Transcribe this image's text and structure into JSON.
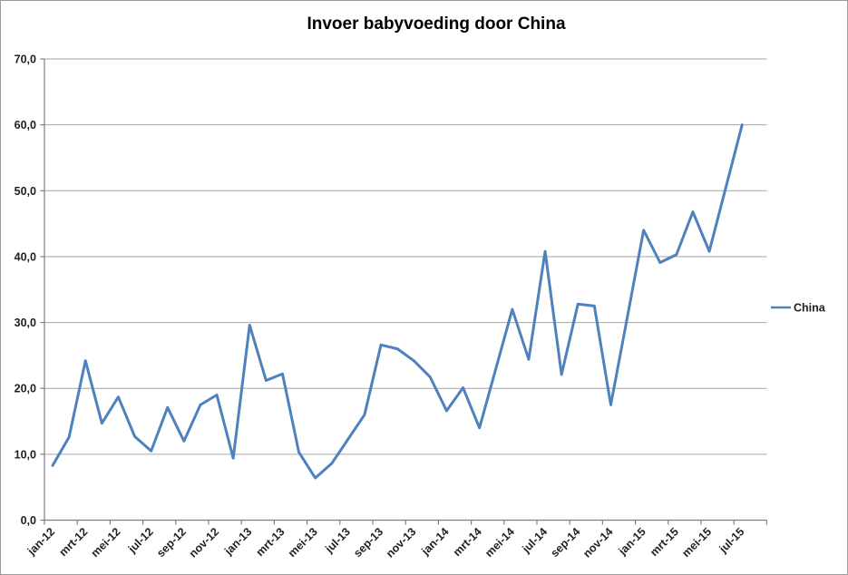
{
  "chart_data": {
    "type": "line",
    "title": "Invoer babyvoeding door China",
    "categories": [
      "jan-12",
      "feb-12",
      "mrt-12",
      "apr-12",
      "mei-12",
      "jun-12",
      "jul-12",
      "aug-12",
      "sep-12",
      "okt-12",
      "nov-12",
      "dec-12",
      "jan-13",
      "feb-13",
      "mrt-13",
      "apr-13",
      "mei-13",
      "jun-13",
      "jul-13",
      "aug-13",
      "sep-13",
      "okt-13",
      "nov-13",
      "dec-13",
      "jan-14",
      "feb-14",
      "mrt-14",
      "apr-14",
      "mei-14",
      "jun-14",
      "jul-14",
      "aug-14",
      "sep-14",
      "okt-14",
      "nov-14",
      "dec-14",
      "jan-15",
      "feb-15",
      "mrt-15",
      "apr-15",
      "mei-15",
      "jun-15",
      "jul-15"
    ],
    "series": [
      {
        "name": "China",
        "color": "#4F81BD",
        "values": [
          8.3,
          12.6,
          24.2,
          14.7,
          18.7,
          12.7,
          10.5,
          17.1,
          12.0,
          17.5,
          19.0,
          9.4,
          29.6,
          21.2,
          22.2,
          10.3,
          6.4,
          8.6,
          12.3,
          16.0,
          26.6,
          26.0,
          24.2,
          21.7,
          16.6,
          20.1,
          14.0,
          23.0,
          32.0,
          24.4,
          40.8,
          22.1,
          32.8,
          32.5,
          17.5,
          30.7,
          44.0,
          39.1,
          40.3,
          46.8,
          40.8,
          50.4,
          60.0
        ]
      }
    ],
    "x_axis": {
      "tick_labels": [
        "jan-12",
        "mrt-12",
        "mei-12",
        "jul-12",
        "sep-12",
        "nov-12",
        "jan-13",
        "mrt-13",
        "mei-13",
        "jul-13",
        "sep-13",
        "nov-13",
        "jan-14",
        "mrt-14",
        "mei-14",
        "jul-14",
        "sep-14",
        "nov-14",
        "jan-15",
        "mrt-15",
        "mei-15",
        "jul-15"
      ],
      "labelled_every_n_categories": 2,
      "label_rotation_deg": -45
    },
    "y_axis": {
      "min": 0,
      "max": 70,
      "step": 10,
      "tick_labels": [
        "0,0",
        "10,0",
        "20,0",
        "30,0",
        "40,0",
        "50,0",
        "60,0",
        "70,0"
      ],
      "decimal_separator": ","
    },
    "grid": true,
    "legend": {
      "position": "right",
      "entries": [
        "China"
      ]
    },
    "colors": {
      "series_line": "#4F81BD",
      "axis": "#808080",
      "gridline": "#A6A6A6",
      "label": "#1f1f1f",
      "title": "#000000",
      "background": "#FFFFFF"
    }
  }
}
